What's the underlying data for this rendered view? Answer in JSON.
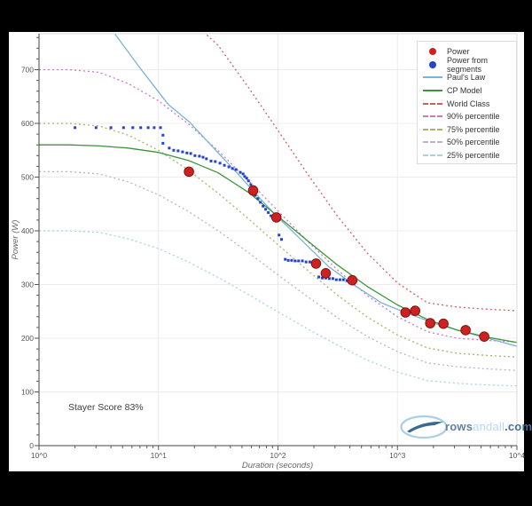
{
  "page": {
    "background": "#000000",
    "canvas_background": "#ffffff"
  },
  "stayer_score": {
    "label": "Stayer Score 83%"
  },
  "logo": {
    "prefix": "rows",
    "middle": "andall",
    "suffix": ".com"
  },
  "axes": {
    "x_title": "Duration (seconds)",
    "y_title": "Power (W)",
    "x_tick_labels": [
      "10^0",
      "10^1",
      "10^2",
      "10^3",
      "10^4"
    ],
    "y_tick_labels": [
      "0",
      "100",
      "200",
      "300",
      "400",
      "500",
      "600",
      "700"
    ]
  },
  "legend": {
    "items": [
      {
        "label": "Power",
        "swatch": "dot",
        "color": "#cc2222"
      },
      {
        "label": "Power from segments",
        "swatch": "dot",
        "color": "#2244cc"
      },
      {
        "label": "Paul's Law",
        "swatch": "line",
        "color": "#7ab3d6"
      },
      {
        "label": "CP Model",
        "swatch": "line",
        "color": "#3c9639"
      },
      {
        "label": "World Class",
        "swatch": "dash",
        "color": "#d06060"
      },
      {
        "label": "90% percentile",
        "swatch": "dash",
        "color": "#c77bc7"
      },
      {
        "label": "75% percentile",
        "swatch": "dash",
        "color": "#b3ae68"
      },
      {
        "label": "50% percentile",
        "swatch": "dash",
        "color": "#b8b8b8"
      },
      {
        "label": "25% percentile",
        "swatch": "dash",
        "color": "#a5d2e8"
      }
    ]
  },
  "chart_data": {
    "type": "scatter",
    "title": "",
    "xlabel": "Duration (seconds)",
    "ylabel": "Power (W)",
    "x_scale": "log",
    "xlim_log10": [
      0,
      4
    ],
    "ylim": [
      0,
      767
    ],
    "grid": true,
    "legend_position": "top-right",
    "power_color": "#cc2222",
    "segment_color": "#2244cc",
    "power_points": [
      [
        18,
        510
      ],
      [
        62,
        475
      ],
      [
        97,
        425
      ],
      [
        208,
        339
      ],
      [
        251,
        321
      ],
      [
        419,
        308
      ],
      [
        1167,
        248
      ],
      [
        1406,
        251
      ],
      [
        1880,
        228
      ],
      [
        2427,
        227
      ],
      [
        3715,
        215
      ],
      [
        5321,
        203
      ]
    ],
    "segment_points": [
      [
        2.0,
        592
      ],
      [
        3.0,
        592
      ],
      [
        4.0,
        592
      ],
      [
        5.1,
        592
      ],
      [
        6.1,
        592
      ],
      [
        7.1,
        592
      ],
      [
        8.2,
        592
      ],
      [
        9.2,
        592
      ],
      [
        10.4,
        592
      ],
      [
        10.9,
        578
      ],
      [
        10.9,
        563
      ],
      [
        12.3,
        554
      ],
      [
        13.4,
        550
      ],
      [
        14.6,
        549
      ],
      [
        15.9,
        547
      ],
      [
        17.3,
        545
      ],
      [
        18.6,
        544
      ],
      [
        20.2,
        540
      ],
      [
        22,
        539
      ],
      [
        23.6,
        537
      ],
      [
        25.2,
        534
      ],
      [
        27.5,
        530
      ],
      [
        29.9,
        529
      ],
      [
        32.7,
        526
      ],
      [
        35.6,
        522
      ],
      [
        38.8,
        519
      ],
      [
        41.6,
        516
      ],
      [
        44.5,
        514
      ],
      [
        48.4,
        509
      ],
      [
        51.1,
        506
      ],
      [
        52.8,
        501
      ],
      [
        54.7,
        498
      ],
      [
        56.6,
        493
      ],
      [
        59.3,
        486
      ],
      [
        61.3,
        479
      ],
      [
        64.5,
        466
      ],
      [
        67.8,
        460
      ],
      [
        71.3,
        453
      ],
      [
        75,
        446
      ],
      [
        78.9,
        440
      ],
      [
        83,
        434
      ],
      [
        87.3,
        428
      ],
      [
        102,
        392
      ],
      [
        107,
        384
      ],
      [
        115,
        347
      ],
      [
        122,
        345
      ],
      [
        130,
        345
      ],
      [
        139,
        344
      ],
      [
        149,
        344
      ],
      [
        160,
        344
      ],
      [
        172,
        342
      ],
      [
        185,
        342
      ],
      [
        199,
        341
      ],
      [
        209,
        341
      ],
      [
        220,
        314
      ],
      [
        235,
        312
      ],
      [
        251,
        312
      ],
      [
        269,
        311
      ],
      [
        288,
        311
      ],
      [
        308,
        309
      ],
      [
        330,
        309
      ],
      [
        353,
        309
      ],
      [
        378,
        307
      ],
      [
        405,
        307
      ]
    ],
    "curves": [
      {
        "id": "p25",
        "name": "25% percentile",
        "color": "#a5d2e8",
        "style": "dash",
        "points": [
          [
            1,
            400
          ],
          [
            1.8,
            400
          ],
          [
            3.2,
            397
          ],
          [
            5.6,
            385
          ],
          [
            10,
            367
          ],
          [
            17.8,
            342
          ],
          [
            31.6,
            313
          ],
          [
            56.2,
            282
          ],
          [
            100,
            249
          ],
          [
            178,
            217
          ],
          [
            316,
            187
          ],
          [
            562,
            159
          ],
          [
            1000,
            137
          ],
          [
            1780,
            121
          ],
          [
            3160,
            116
          ],
          [
            5620,
            113
          ],
          [
            10000,
            111
          ]
        ]
      },
      {
        "id": "p50",
        "name": "50% percentile",
        "color": "#b8b8b8",
        "style": "dash",
        "points": [
          [
            1,
            510
          ],
          [
            1.8,
            510
          ],
          [
            3.2,
            506
          ],
          [
            5.6,
            491
          ],
          [
            10,
            467
          ],
          [
            17.8,
            436
          ],
          [
            31.6,
            400
          ],
          [
            56.2,
            360
          ],
          [
            100,
            318
          ],
          [
            178,
            277
          ],
          [
            316,
            238
          ],
          [
            562,
            203
          ],
          [
            1000,
            175
          ],
          [
            1780,
            154
          ],
          [
            3160,
            147
          ],
          [
            5620,
            143
          ],
          [
            10000,
            140
          ]
        ]
      },
      {
        "id": "p75",
        "name": "75% percentile",
        "color": "#b3ae68",
        "style": "dash",
        "points": [
          [
            1,
            600
          ],
          [
            1.8,
            600
          ],
          [
            3.2,
            595
          ],
          [
            5.6,
            578
          ],
          [
            10,
            550
          ],
          [
            17.8,
            513
          ],
          [
            31.6,
            470
          ],
          [
            56.2,
            423
          ],
          [
            100,
            374
          ],
          [
            178,
            326
          ],
          [
            316,
            280
          ],
          [
            562,
            239
          ],
          [
            1000,
            206
          ],
          [
            1780,
            182
          ],
          [
            3160,
            172
          ],
          [
            5620,
            168
          ],
          [
            10000,
            165
          ]
        ]
      },
      {
        "id": "p90",
        "name": "90% percentile",
        "color": "#c77bc7",
        "style": "dash",
        "points": [
          [
            1,
            700
          ],
          [
            1.8,
            700
          ],
          [
            3.2,
            695
          ],
          [
            5.6,
            674
          ],
          [
            10,
            642
          ],
          [
            17.8,
            599
          ],
          [
            31.6,
            549
          ],
          [
            56.2,
            494
          ],
          [
            100,
            437
          ],
          [
            178,
            380
          ],
          [
            316,
            327
          ],
          [
            562,
            279
          ],
          [
            1000,
            240
          ],
          [
            1780,
            212
          ],
          [
            3160,
            200
          ],
          [
            5620,
            196
          ],
          [
            10000,
            193
          ]
        ]
      },
      {
        "id": "world-class",
        "name": "World Class",
        "color": "#d06060",
        "style": "dash",
        "points": [
          [
            17.8,
            830
          ],
          [
            24,
            770
          ],
          [
            31.6,
            745
          ],
          [
            56.2,
            668
          ],
          [
            100,
            587
          ],
          [
            178,
            505
          ],
          [
            316,
            427
          ],
          [
            562,
            358
          ],
          [
            1000,
            303
          ],
          [
            1780,
            266
          ],
          [
            3160,
            258
          ],
          [
            5620,
            254
          ],
          [
            10000,
            251
          ]
        ]
      },
      {
        "id": "pauls-law",
        "name": "Paul's Law",
        "color": "#7ab3d6",
        "style": "solid",
        "points": [
          [
            4.3,
            767
          ],
          [
            7.3,
            698
          ],
          [
            12.1,
            635
          ],
          [
            18.3,
            602
          ],
          [
            31,
            547
          ],
          [
            48,
            502
          ],
          [
            65,
            469
          ],
          [
            97,
            428
          ],
          [
            157,
            383
          ],
          [
            263,
            334
          ],
          [
            439,
            298
          ],
          [
            733,
            266
          ],
          [
            1224,
            246
          ],
          [
            2042,
            228
          ],
          [
            3412,
            213
          ],
          [
            5702,
            200
          ],
          [
            10000,
            185
          ]
        ]
      },
      {
        "id": "cp-model",
        "name": "CP Model",
        "color": "#3c9639",
        "style": "solid",
        "points": [
          [
            1,
            560
          ],
          [
            1.8,
            560
          ],
          [
            3.2,
            558
          ],
          [
            5.6,
            554
          ],
          [
            10,
            546
          ],
          [
            17.8,
            531
          ],
          [
            31.6,
            508
          ],
          [
            56.2,
            472
          ],
          [
            100,
            427
          ],
          [
            178,
            381
          ],
          [
            316,
            336
          ],
          [
            562,
            296
          ],
          [
            1000,
            262
          ],
          [
            1780,
            235
          ],
          [
            3160,
            215
          ],
          [
            5620,
            202
          ],
          [
            10000,
            192
          ]
        ]
      }
    ]
  }
}
